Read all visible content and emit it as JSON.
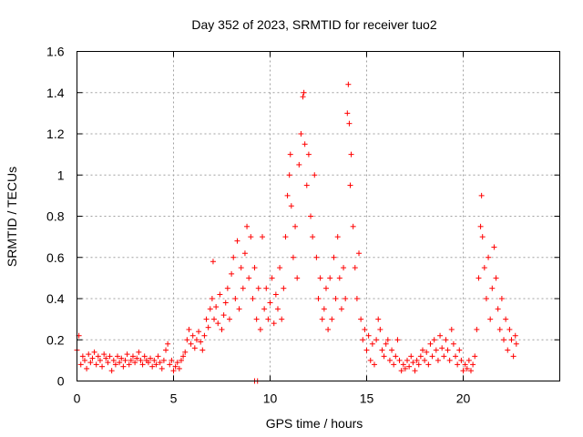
{
  "chart_data": {
    "type": "scatter",
    "title": "Day 352 of 2023, SRMTID for receiver tuo2",
    "xlabel": "GPS time / hours",
    "ylabel": "SRMTID / TECUs",
    "xlim": [
      0,
      25
    ],
    "ylim": [
      0,
      1.6
    ],
    "x_ticks": [
      "0",
      "5",
      "10",
      "15",
      "20"
    ],
    "y_ticks": [
      "0",
      "0.2",
      "0.4",
      "0.6",
      "0.8",
      "1",
      "1.2",
      "1.4",
      "1.6"
    ],
    "grid": true,
    "marker": "plus",
    "color": "#ff0000",
    "series": [
      {
        "name": "tuo2",
        "points": [
          [
            0.0,
            0.15
          ],
          [
            0.1,
            0.22
          ],
          [
            0.2,
            0.08
          ],
          [
            0.3,
            0.12
          ],
          [
            0.4,
            0.1
          ],
          [
            0.5,
            0.06
          ],
          [
            0.6,
            0.13
          ],
          [
            0.7,
            0.09
          ],
          [
            0.8,
            0.11
          ],
          [
            0.9,
            0.14
          ],
          [
            1.0,
            0.08
          ],
          [
            1.1,
            0.12
          ],
          [
            1.2,
            0.1
          ],
          [
            1.3,
            0.07
          ],
          [
            1.4,
            0.13
          ],
          [
            1.5,
            0.11
          ],
          [
            1.6,
            0.09
          ],
          [
            1.7,
            0.12
          ],
          [
            1.8,
            0.05
          ],
          [
            1.9,
            0.1
          ],
          [
            2.0,
            0.08
          ],
          [
            2.1,
            0.12
          ],
          [
            2.2,
            0.09
          ],
          [
            2.3,
            0.11
          ],
          [
            2.4,
            0.07
          ],
          [
            2.5,
            0.1
          ],
          [
            2.6,
            0.13
          ],
          [
            2.7,
            0.08
          ],
          [
            2.8,
            0.1
          ],
          [
            2.9,
            0.12
          ],
          [
            3.0,
            0.09
          ],
          [
            3.1,
            0.11
          ],
          [
            3.2,
            0.14
          ],
          [
            3.3,
            0.1
          ],
          [
            3.4,
            0.08
          ],
          [
            3.5,
            0.12
          ],
          [
            3.6,
            0.1
          ],
          [
            3.7,
            0.09
          ],
          [
            3.8,
            0.11
          ],
          [
            3.9,
            0.07
          ],
          [
            4.0,
            0.1
          ],
          [
            4.1,
            0.08
          ],
          [
            4.2,
            0.12
          ],
          [
            4.3,
            0.09
          ],
          [
            4.4,
            0.06
          ],
          [
            4.5,
            0.1
          ],
          [
            4.6,
            0.15
          ],
          [
            4.7,
            0.18
          ],
          [
            4.8,
            0.08
          ],
          [
            4.9,
            0.1
          ],
          [
            5.0,
            0.05
          ],
          [
            5.1,
            0.07
          ],
          [
            5.2,
            0.09
          ],
          [
            5.3,
            0.06
          ],
          [
            5.4,
            0.1
          ],
          [
            5.5,
            0.12
          ],
          [
            5.6,
            0.14
          ],
          [
            5.7,
            0.2
          ],
          [
            5.8,
            0.25
          ],
          [
            5.9,
            0.18
          ],
          [
            6.0,
            0.22
          ],
          [
            6.1,
            0.16
          ],
          [
            6.2,
            0.2
          ],
          [
            6.3,
            0.24
          ],
          [
            6.4,
            0.19
          ],
          [
            6.5,
            0.15
          ],
          [
            6.6,
            0.22
          ],
          [
            6.7,
            0.3
          ],
          [
            6.8,
            0.26
          ],
          [
            6.9,
            0.35
          ],
          [
            7.0,
            0.4
          ],
          [
            7.05,
            0.58
          ],
          [
            7.1,
            0.3
          ],
          [
            7.2,
            0.36
          ],
          [
            7.3,
            0.28
          ],
          [
            7.4,
            0.42
          ],
          [
            7.5,
            0.25
          ],
          [
            7.6,
            0.32
          ],
          [
            7.7,
            0.38
          ],
          [
            7.8,
            0.45
          ],
          [
            7.9,
            0.3
          ],
          [
            8.0,
            0.52
          ],
          [
            8.1,
            0.6
          ],
          [
            8.2,
            0.4
          ],
          [
            8.3,
            0.68
          ],
          [
            8.4,
            0.35
          ],
          [
            8.5,
            0.55
          ],
          [
            8.6,
            0.45
          ],
          [
            8.7,
            0.62
          ],
          [
            8.8,
            0.75
          ],
          [
            8.9,
            0.5
          ],
          [
            9.0,
            0.7
          ],
          [
            9.1,
            0.4
          ],
          [
            9.2,
            0.55
          ],
          [
            9.3,
            0.3
          ],
          [
            9.4,
            0.45
          ],
          [
            9.5,
            0.25
          ],
          [
            9.6,
            0.7
          ],
          [
            9.7,
            0.35
          ],
          [
            9.8,
            0.45
          ],
          [
            9.9,
            0.3
          ],
          [
            10.0,
            0.38
          ],
          [
            10.1,
            0.5
          ],
          [
            10.2,
            0.28
          ],
          [
            10.3,
            0.42
          ],
          [
            10.4,
            0.35
          ],
          [
            10.5,
            0.55
          ],
          [
            10.6,
            0.3
          ],
          [
            10.7,
            0.45
          ],
          [
            10.8,
            0.7
          ],
          [
            10.9,
            0.9
          ],
          [
            11.0,
            1.0
          ],
          [
            11.05,
            1.1
          ],
          [
            11.1,
            0.85
          ],
          [
            11.2,
            0.6
          ],
          [
            11.3,
            0.75
          ],
          [
            11.4,
            0.5
          ],
          [
            11.5,
            1.05
          ],
          [
            11.6,
            1.2
          ],
          [
            11.7,
            1.38
          ],
          [
            11.75,
            1.4
          ],
          [
            11.8,
            1.15
          ],
          [
            11.9,
            0.95
          ],
          [
            12.0,
            1.1
          ],
          [
            12.1,
            0.8
          ],
          [
            12.2,
            0.7
          ],
          [
            12.3,
            1.0
          ],
          [
            12.4,
            0.6
          ],
          [
            12.5,
            0.4
          ],
          [
            12.6,
            0.5
          ],
          [
            12.7,
            0.3
          ],
          [
            12.8,
            0.35
          ],
          [
            12.9,
            0.45
          ],
          [
            13.0,
            0.25
          ],
          [
            13.1,
            0.5
          ],
          [
            13.2,
            0.3
          ],
          [
            13.3,
            0.6
          ],
          [
            13.4,
            0.4
          ],
          [
            13.5,
            0.7
          ],
          [
            13.6,
            0.5
          ],
          [
            13.7,
            0.35
          ],
          [
            13.8,
            0.55
          ],
          [
            13.9,
            0.4
          ],
          [
            14.0,
            1.3
          ],
          [
            14.05,
            1.44
          ],
          [
            14.1,
            1.25
          ],
          [
            14.15,
            0.95
          ],
          [
            14.2,
            1.1
          ],
          [
            14.3,
            0.75
          ],
          [
            14.4,
            0.55
          ],
          [
            14.5,
            0.4
          ],
          [
            14.6,
            0.62
          ],
          [
            14.7,
            0.3
          ],
          [
            14.8,
            0.2
          ],
          [
            14.9,
            0.25
          ],
          [
            15.0,
            0.15
          ],
          [
            15.1,
            0.22
          ],
          [
            15.2,
            0.1
          ],
          [
            15.3,
            0.18
          ],
          [
            15.4,
            0.08
          ],
          [
            15.5,
            0.2
          ],
          [
            15.6,
            0.3
          ],
          [
            15.7,
            0.25
          ],
          [
            15.8,
            0.15
          ],
          [
            15.9,
            0.12
          ],
          [
            16.0,
            0.18
          ],
          [
            16.1,
            0.2
          ],
          [
            16.2,
            0.1
          ],
          [
            16.3,
            0.15
          ],
          [
            16.4,
            0.08
          ],
          [
            16.5,
            0.12
          ],
          [
            16.6,
            0.2
          ],
          [
            16.7,
            0.1
          ],
          [
            16.8,
            0.05
          ],
          [
            16.9,
            0.08
          ],
          [
            17.0,
            0.06
          ],
          [
            17.1,
            0.1
          ],
          [
            17.2,
            0.07
          ],
          [
            17.3,
            0.12
          ],
          [
            17.4,
            0.09
          ],
          [
            17.5,
            0.05
          ],
          [
            17.6,
            0.1
          ],
          [
            17.7,
            0.08
          ],
          [
            17.8,
            0.12
          ],
          [
            17.9,
            0.15
          ],
          [
            18.0,
            0.1
          ],
          [
            18.1,
            0.14
          ],
          [
            18.2,
            0.08
          ],
          [
            18.3,
            0.18
          ],
          [
            18.4,
            0.12
          ],
          [
            18.5,
            0.2
          ],
          [
            18.6,
            0.15
          ],
          [
            18.7,
            0.1
          ],
          [
            18.8,
            0.22
          ],
          [
            18.9,
            0.16
          ],
          [
            19.0,
            0.12
          ],
          [
            19.1,
            0.2
          ],
          [
            19.2,
            0.15
          ],
          [
            19.3,
            0.1
          ],
          [
            19.4,
            0.25
          ],
          [
            19.5,
            0.18
          ],
          [
            19.6,
            0.12
          ],
          [
            19.7,
            0.08
          ],
          [
            19.8,
            0.15
          ],
          [
            19.9,
            0.1
          ],
          [
            20.0,
            0.05
          ],
          [
            20.1,
            0.08
          ],
          [
            20.2,
            0.06
          ],
          [
            20.3,
            0.1
          ],
          [
            20.4,
            0.05
          ],
          [
            20.5,
            0.08
          ],
          [
            20.6,
            0.12
          ],
          [
            20.7,
            0.25
          ],
          [
            20.8,
            0.5
          ],
          [
            20.9,
            0.75
          ],
          [
            20.95,
            0.9
          ],
          [
            21.0,
            0.7
          ],
          [
            21.1,
            0.55
          ],
          [
            21.2,
            0.4
          ],
          [
            21.3,
            0.6
          ],
          [
            21.4,
            0.3
          ],
          [
            21.5,
            0.45
          ],
          [
            21.6,
            0.65
          ],
          [
            21.7,
            0.5
          ],
          [
            21.8,
            0.35
          ],
          [
            21.9,
            0.25
          ],
          [
            22.0,
            0.4
          ],
          [
            22.1,
            0.2
          ],
          [
            22.2,
            0.3
          ],
          [
            22.3,
            0.15
          ],
          [
            22.4,
            0.25
          ],
          [
            22.5,
            0.2
          ],
          [
            22.6,
            0.12
          ],
          [
            22.7,
            0.22
          ],
          [
            22.75,
            0.18
          ],
          [
            9.2,
            0.0
          ],
          [
            9.35,
            0.0
          ]
        ]
      }
    ]
  }
}
